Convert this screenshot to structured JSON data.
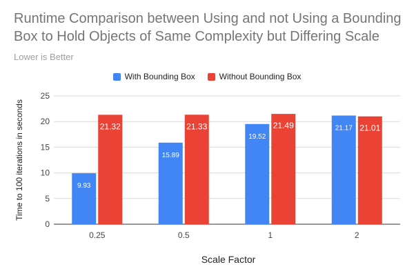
{
  "chart_data": {
    "type": "bar",
    "title": "Runtime Comparison between Using and not Using a Bounding Box to Hold Objects of Same Complexity but Differing Scale",
    "subtitle": "Lower is Better",
    "xlabel": "Scale Factor",
    "ylabel": "Time to 100 iterations in seconds",
    "categories": [
      "0.25",
      "0.5",
      "1",
      "2"
    ],
    "series": [
      {
        "name": "With Bounding Box",
        "color": "#4285f4",
        "values": [
          9.93,
          15.89,
          19.52,
          21.17
        ]
      },
      {
        "name": "Without Bounding Box",
        "color": "#ea4335",
        "values": [
          21.32,
          21.33,
          21.49,
          21.01
        ]
      }
    ],
    "ylim": [
      0,
      25
    ],
    "yticks": [
      0,
      5,
      10,
      15,
      20,
      25
    ],
    "grid": true,
    "legend": "top-center"
  }
}
